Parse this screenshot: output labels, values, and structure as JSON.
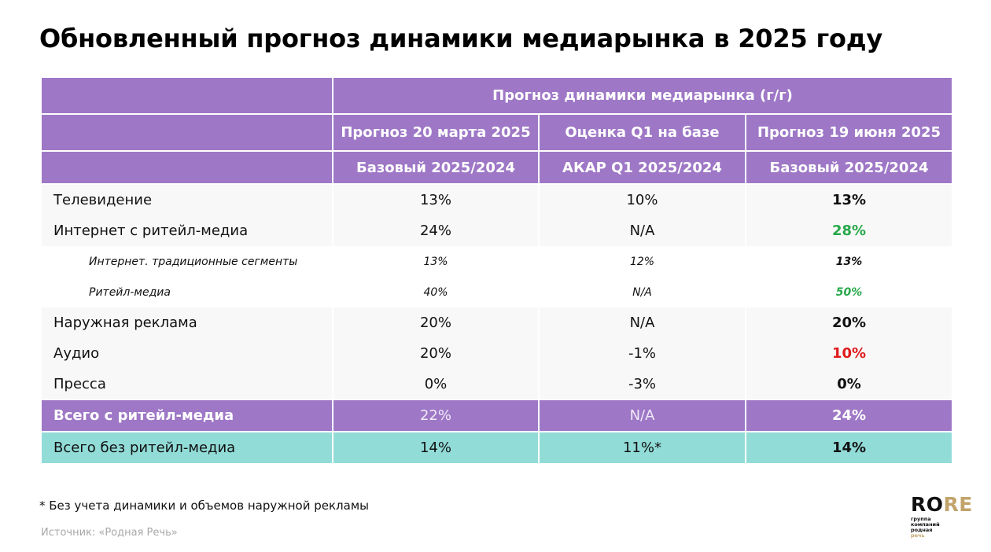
{
  "title": "Обновленный прогноз динамики медиарынка в 2025 году",
  "table": {
    "group_header": "Прогноз динамики медиарынка (г/г)",
    "columns": [
      {
        "line1": "Прогноз 20 марта 2025",
        "line2": "Базовый 2025/2024"
      },
      {
        "line1": "Оценка Q1 на базе",
        "line2": "АКАР Q1 2025/2024"
      },
      {
        "line1": "Прогноз 19 июня 2025",
        "line2": "Базовый 2025/2024"
      }
    ],
    "rows": [
      {
        "label": "Телевидение",
        "values": [
          "13%",
          "10%",
          "13%"
        ],
        "last_color": "black"
      },
      {
        "label": "Интернет с ритейл-медиа",
        "values": [
          "24%",
          "N/A",
          "28%"
        ],
        "last_color": "green"
      },
      {
        "label": "Интернет. традиционные сегменты",
        "values": [
          "13%",
          "12%",
          "13%"
        ],
        "last_color": "black",
        "sub": true
      },
      {
        "label": "Ритейл-медиа",
        "values": [
          "40%",
          "N/A",
          "50%"
        ],
        "last_color": "green",
        "sub": true
      },
      {
        "label": "Наружная реклама",
        "values": [
          "20%",
          "N/A",
          "20%"
        ],
        "last_color": "black"
      },
      {
        "label": "Аудио",
        "values": [
          "20%",
          "-1%",
          "10%"
        ],
        "last_color": "red"
      },
      {
        "label": "Пресса",
        "values": [
          "0%",
          "-3%",
          "0%"
        ],
        "last_color": "black"
      },
      {
        "label": "Всего с ритейл-медиа",
        "values": [
          "22%",
          "N/A",
          "24%"
        ],
        "total": "retail"
      },
      {
        "label": "Всего без ритейл-медиа",
        "values": [
          "14%",
          "11%*",
          "14%"
        ],
        "total": "noretail"
      }
    ]
  },
  "footnote": "* Без учета динамики и объемов наружной рекламы",
  "source": "Источник: «Родная Речь»",
  "logo": {
    "word_ro": "RO",
    "word_re": "RE",
    "sub_lines": [
      "группа",
      "компаний",
      "родная"
    ],
    "sub_last": "речь"
  },
  "colors": {
    "header_purple": "#9e78c6",
    "total_teal": "#92dcd8",
    "positive_green": "#27a84a",
    "negative_red": "#e0191b",
    "logo_gold": "#c2a46a"
  }
}
